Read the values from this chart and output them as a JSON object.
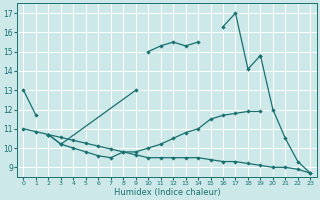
{
  "bg_color": "#cce8e8",
  "grid_color": "#ffffff",
  "line_color": "#1a7070",
  "xlabel": "Humidex (Indice chaleur)",
  "ylim": [
    8.5,
    17.5
  ],
  "xlim": [
    -0.5,
    23.5
  ],
  "yticks": [
    9,
    10,
    11,
    12,
    13,
    14,
    15,
    16,
    17
  ],
  "xticks": [
    0,
    1,
    2,
    3,
    4,
    5,
    6,
    7,
    8,
    9,
    10,
    11,
    12,
    13,
    14,
    15,
    16,
    17,
    18,
    19,
    20,
    21,
    22,
    23
  ],
  "series": [
    {
      "comment": "top line: 0->13, 1->11.7, gap, 10->15, 11->15.3, 12->15.5, 13->15.3, 14->15.5, gap, 16->16.3, 17->17.0, 18->14.1, 19->14.8",
      "segments": [
        {
          "x": [
            0,
            1
          ],
          "y": [
            13.0,
            11.7
          ]
        },
        {
          "x": [
            10,
            11,
            12,
            13,
            14
          ],
          "y": [
            15.0,
            15.3,
            15.5,
            15.3,
            15.5
          ]
        },
        {
          "x": [
            16,
            17,
            18,
            19
          ],
          "y": [
            16.3,
            17.0,
            14.1,
            14.8
          ]
        }
      ]
    },
    {
      "comment": "diagonal line going from bottom-left to upper-right area: 2->10.7, 9->13, connects to 19->14.8, 20->12, 21->10.5, 22->9.3, 23->8.7",
      "segments": [
        {
          "x": [
            2,
            3,
            9
          ],
          "y": [
            10.7,
            10.2,
            13.0
          ]
        },
        {
          "x": [
            19,
            20,
            21,
            22,
            23
          ],
          "y": [
            14.8,
            12.0,
            10.5,
            9.3,
            8.7
          ]
        }
      ]
    },
    {
      "segments": [
        {
          "x": [
            2,
            3,
            4,
            5,
            6,
            7,
            8,
            9,
            10,
            11,
            12,
            13,
            14,
            15,
            16,
            17,
            18,
            19
          ],
          "y": [
            10.7,
            10.2,
            10.0,
            9.8,
            9.6,
            9.5,
            9.8,
            9.8,
            10.0,
            10.2,
            10.5,
            10.8,
            11.0,
            11.5,
            11.7,
            11.8,
            11.9,
            11.9
          ]
        }
      ]
    },
    {
      "segments": [
        {
          "x": [
            0,
            1,
            2,
            3,
            4,
            5,
            6,
            7,
            8,
            9,
            10,
            11,
            12,
            13,
            14,
            15,
            16,
            17,
            18,
            19,
            20,
            21,
            22,
            23
          ],
          "y": [
            11.0,
            10.85,
            10.7,
            10.55,
            10.4,
            10.25,
            10.1,
            9.95,
            9.8,
            9.65,
            9.5,
            9.5,
            9.5,
            9.5,
            9.5,
            9.4,
            9.3,
            9.3,
            9.2,
            9.1,
            9.0,
            9.0,
            8.9,
            8.7
          ]
        }
      ]
    }
  ]
}
